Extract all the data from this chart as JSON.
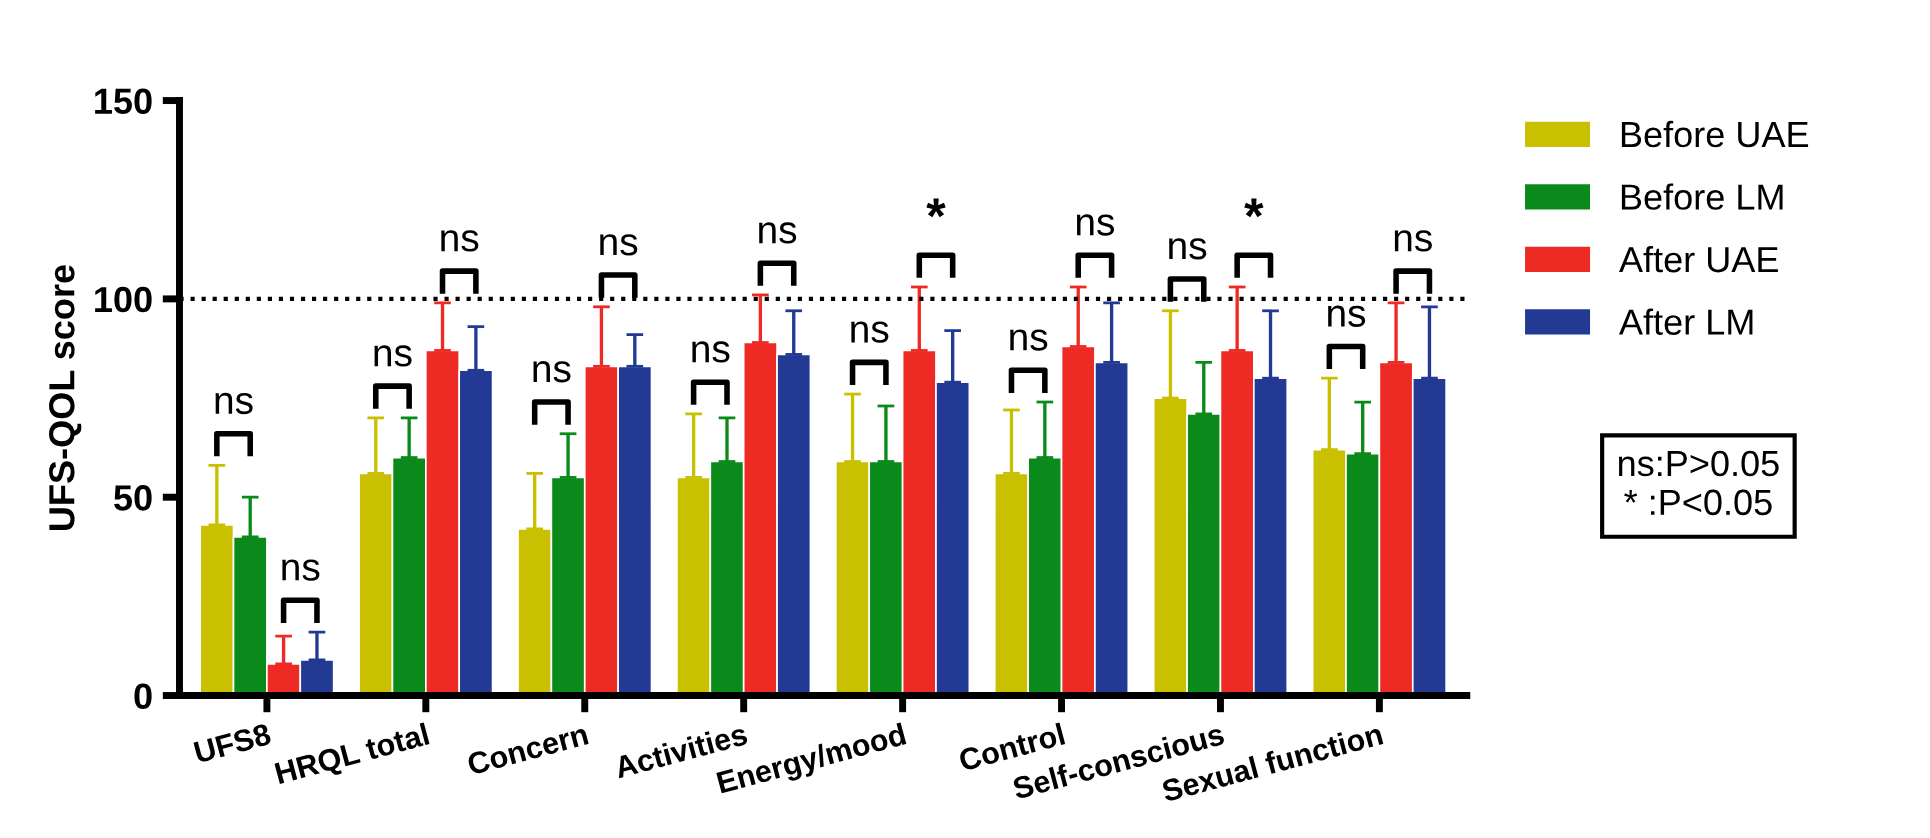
{
  "chart_data": {
    "type": "bar",
    "ylabel": "UFS-QOL score",
    "categories": [
      "UFS8",
      "HRQL total",
      "Concern",
      "Activities",
      "Energy/mood",
      "Control",
      "Self-conscious",
      "Sexual function"
    ],
    "series": [
      {
        "name": "Before UAE",
        "color": "#c8c000",
        "values": [
          43,
          56,
          42,
          55,
          59,
          56,
          75,
          62
        ],
        "errors": [
          [
            43,
            58
          ],
          [
            56,
            70
          ],
          [
            42,
            56
          ],
          [
            55,
            71
          ],
          [
            59,
            76
          ],
          [
            56,
            72
          ],
          [
            75,
            97
          ],
          [
            62,
            80
          ]
        ]
      },
      {
        "name": "Before LM",
        "color": "#0a8a1a",
        "values": [
          40,
          60,
          55,
          59,
          59,
          60,
          71,
          61
        ],
        "errors": [
          [
            40,
            50
          ],
          [
            60,
            70
          ],
          [
            55,
            66
          ],
          [
            59,
            70
          ],
          [
            59,
            73
          ],
          [
            60,
            74
          ],
          [
            71,
            84
          ],
          [
            61,
            74
          ]
        ]
      },
      {
        "name": "After UAE",
        "color": "#ee2a24",
        "values": [
          8,
          87,
          83,
          89,
          87,
          88,
          87,
          84
        ],
        "errors": [
          [
            8,
            15
          ],
          [
            87,
            99
          ],
          [
            83,
            98
          ],
          [
            89,
            101
          ],
          [
            87,
            103
          ],
          [
            88,
            103
          ],
          [
            87,
            103
          ],
          [
            84,
            99
          ]
        ]
      },
      {
        "name": "After LM",
        "color": "#233a94",
        "values": [
          9,
          82,
          83,
          86,
          79,
          84,
          80,
          80
        ],
        "errors": [
          [
            9,
            16
          ],
          [
            82,
            93
          ],
          [
            83,
            91
          ],
          [
            86,
            97
          ],
          [
            79,
            92
          ],
          [
            84,
            99
          ],
          [
            80,
            97
          ],
          [
            80,
            98
          ]
        ]
      }
    ],
    "ylim": [
      0,
      150
    ],
    "yticks": [
      0,
      50,
      100,
      150
    ],
    "ref_lines": [
      {
        "axis": "y",
        "value": 100,
        "color": "#000000",
        "line_style": "dotted"
      }
    ],
    "legend": "right",
    "grid": false,
    "annotations": [
      "ns",
      "ns",
      "ns",
      "ns",
      "ns",
      "ns",
      "ns",
      "ns",
      "ns",
      "*",
      "ns",
      "ns",
      "ns",
      "*",
      "ns",
      "ns",
      "ns:P>0.05\n* :P<0.05"
    ]
  }
}
